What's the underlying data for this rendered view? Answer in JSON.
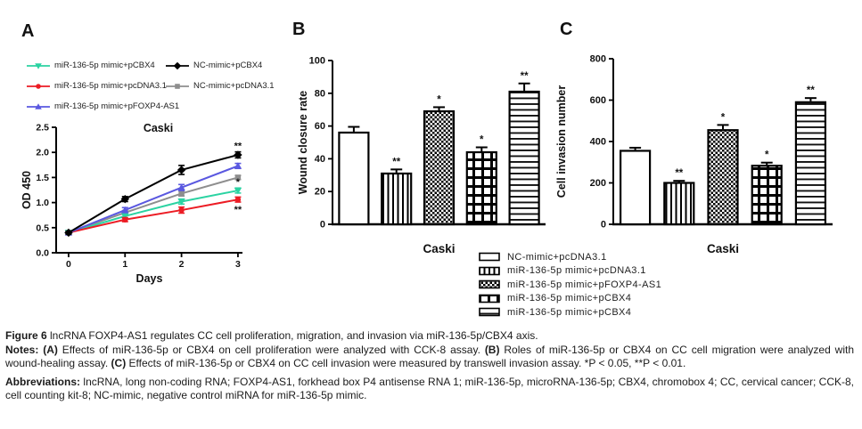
{
  "panel_labels": {
    "a": "A",
    "b": "B",
    "c": "C"
  },
  "colors": {
    "teal": "#2bd3a2",
    "red": "#ec1c24",
    "blue": "#5a58e0",
    "black": "#000000",
    "gray": "#8e8e8e",
    "axis": "#000000"
  },
  "chart_data": [
    {
      "id": "A",
      "type": "line",
      "title": "Caski",
      "xlabel": "Days",
      "ylabel": "OD 450",
      "x": [
        0,
        1,
        2,
        3
      ],
      "xticks": [
        0,
        1,
        2,
        3
      ],
      "xlim": [
        -0.22,
        3.08
      ],
      "ylim": [
        0,
        2.5
      ],
      "yticks": [
        0,
        0.5,
        1,
        1.5,
        2,
        2.5
      ],
      "ytick_labels": [
        "0.0",
        "0.5",
        "1.0",
        "1.5",
        "2.0",
        "2.5"
      ],
      "grid": false,
      "legend_position": "above-plot",
      "series": [
        {
          "name": "miR-136-5p mimic+pCBX4",
          "color": "#2bd3a2",
          "marker": "triangle-down",
          "values": [
            0.4,
            0.73,
            1.02,
            1.24
          ],
          "errors": [
            0.02,
            0.04,
            0.05,
            0.05
          ],
          "end_annotation": "*",
          "annotation_side": "above",
          "legend_col": 1
        },
        {
          "name": "miR-136-5p mimic+pcDNA3.1",
          "color": "#ec1c24",
          "marker": "circle",
          "values": [
            0.4,
            0.66,
            0.85,
            1.06
          ],
          "errors": [
            0.02,
            0.04,
            0.06,
            0.05
          ],
          "end_annotation": "**",
          "annotation_side": "below",
          "legend_col": 1
        },
        {
          "name": "miR-136-5p mimic+pFOXP4-AS1",
          "color": "#5a58e0",
          "marker": "triangle-up",
          "values": [
            0.4,
            0.85,
            1.3,
            1.73
          ],
          "errors": [
            0.02,
            0.05,
            0.06,
            0.05
          ],
          "end_annotation": "*",
          "annotation_side": "above",
          "legend_col": 1
        },
        {
          "name": "NC-mimic+pCBX4",
          "color": "#000000",
          "marker": "diamond",
          "values": [
            0.4,
            1.07,
            1.65,
            1.95
          ],
          "errors": [
            0.03,
            0.05,
            0.09,
            0.06
          ],
          "end_annotation": "**",
          "annotation_side": "above",
          "legend_col": 2
        },
        {
          "name": "NC-mimic+pcDNA3.1",
          "color": "#8e8e8e",
          "marker": "square",
          "values": [
            0.4,
            0.8,
            1.18,
            1.5
          ],
          "errors": [
            0.02,
            0.04,
            0.05,
            0.04
          ],
          "end_annotation": "",
          "annotation_side": "above",
          "legend_col": 2
        }
      ]
    },
    {
      "id": "B",
      "type": "bar",
      "title": "",
      "xlabel": "Caski",
      "ylabel": "Wound closure rate",
      "ylim": [
        0,
        100
      ],
      "yticks": [
        0,
        20,
        40,
        60,
        80,
        100
      ],
      "grid": false,
      "categories": [
        "NC-mimic+pcDNA3.1",
        "miR-136-5p mimic+pcDNA3.1",
        "miR-136-5p mimic+pFOXP4-AS1",
        "miR-136-5p mimic+pCBX4",
        "miR-136-5p mimic+pCBX4"
      ],
      "patterns": [
        "white",
        "vstripes",
        "checker",
        "grid",
        "hstripes"
      ],
      "values": [
        56,
        31,
        69,
        44,
        81
      ],
      "errors": [
        3.5,
        2.5,
        2.5,
        3,
        5
      ],
      "annotations": [
        "",
        "**",
        "*",
        "*",
        "**"
      ]
    },
    {
      "id": "C",
      "type": "bar",
      "title": "",
      "xlabel": "Caski",
      "ylabel": "Cell invasion number",
      "ylim": [
        0,
        800
      ],
      "yticks": [
        0,
        200,
        400,
        600,
        800
      ],
      "grid": false,
      "categories": [
        "NC-mimic+pcDNA3.1",
        "miR-136-5p mimic+pcDNA3.1",
        "miR-136-5p mimic+pFOXP4-AS1",
        "miR-136-5p mimic+pCBX4",
        "miR-136-5p mimic+pCBX4"
      ],
      "patterns": [
        "white",
        "vstripes",
        "checker",
        "grid",
        "hstripes"
      ],
      "values": [
        355,
        200,
        455,
        283,
        590
      ],
      "errors": [
        15,
        10,
        25,
        15,
        20
      ],
      "annotations": [
        "",
        "**",
        "*",
        "*",
        "**"
      ]
    }
  ],
  "bar_legend": {
    "items": [
      {
        "pattern": "white",
        "label": "NC-mimic+pcDNA3.1"
      },
      {
        "pattern": "vstripes",
        "label": "miR-136-5p mimic+pcDNA3.1"
      },
      {
        "pattern": "checker",
        "label": "miR-136-5p mimic+pFOXP4-AS1"
      },
      {
        "pattern": "grid",
        "label": "miR-136-5p mimic+pCBX4"
      },
      {
        "pattern": "hstripes",
        "label": "miR-136-5p mimic+pCBX4"
      }
    ]
  },
  "caption": {
    "title_parts": [
      {
        "text": "Figure 6 ",
        "bold": true
      },
      {
        "text": "lncRNA FOXP4-AS1 regulates CC cell proliferation, migration, and invasion via miR-136-5p/CBX4 axis.",
        "bold": false
      }
    ],
    "notes_parts": [
      {
        "text": "Notes: ",
        "bold": true
      },
      {
        "text": "(A)",
        "bold": true
      },
      {
        "text": " Effects of miR-136-5p or CBX4 on cell proliferation were analyzed with CCK-8 assay. ",
        "bold": false
      },
      {
        "text": "(B)",
        "bold": true
      },
      {
        "text": " Roles of miR-136-5p or CBX4 on CC cell migration were analyzed with wound-healing assay. ",
        "bold": false
      },
      {
        "text": "(C)",
        "bold": true
      },
      {
        "text": " Effects of miR-136-5p or CBX4 on CC cell invasion were measured by transwell invasion assay. *P < 0.05, **P < 0.01.",
        "bold": false
      }
    ],
    "abbrev_parts": [
      {
        "text": "Abbreviations: ",
        "bold": true
      },
      {
        "text": "lncRNA, long non-coding RNA; FOXP4-AS1, forkhead box P4 antisense RNA 1; miR-136-5p, microRNA-136-5p; CBX4, chromobox 4; CC, cervical cancer; CCK-8, cell counting kit-8; NC-mimic, negative control miRNA for miR-136-5p mimic.",
        "bold": false
      }
    ]
  }
}
